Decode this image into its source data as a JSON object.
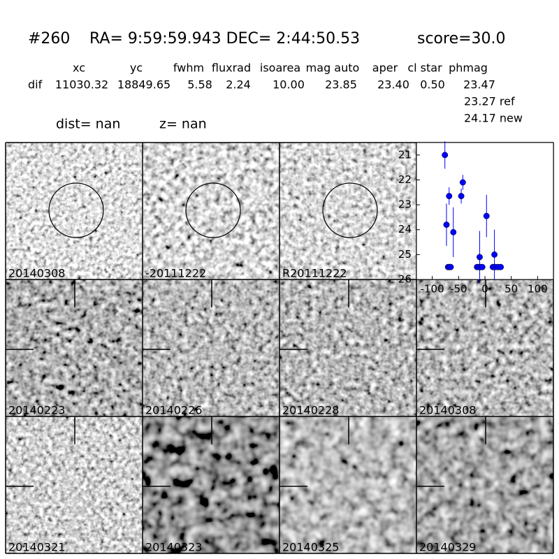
{
  "header": {
    "id": "#260",
    "coords": "RA= 9:59:59.943 DEC= 2:44:50.53",
    "score": "score=30.0",
    "columns": [
      "xc",
      "yc",
      "fwhm",
      "fluxrad",
      "isoarea",
      "mag auto",
      "aper",
      "cl star",
      "phmag"
    ],
    "row_label": "dif",
    "values": [
      "11030.32",
      "18849.65",
      "5.58",
      "2.24",
      "10.00",
      "23.85",
      "23.40",
      "0.50",
      "23.47"
    ],
    "extra": [
      "23.27 ref",
      "24.17 new"
    ],
    "dist": "dist=   nan",
    "z": "z=   nan"
  },
  "panels": [
    {
      "label": "20140308"
    },
    {
      "label": "-20111222"
    },
    {
      "label": "R20111222"
    },
    {
      "label": "20140223"
    },
    {
      "label": "20140226"
    },
    {
      "label": "20140228"
    },
    {
      "label": "20140308",
      "color": "#ff0000"
    },
    {
      "label": "20140321"
    },
    {
      "label": "20140323"
    },
    {
      "label": "20140325"
    },
    {
      "label": "20140329"
    }
  ],
  "chart_data": {
    "type": "scatter",
    "color": "#0000ff",
    "x": [
      -76,
      -73,
      -70,
      -68,
      -67,
      -65,
      -60,
      -45,
      -42,
      -15,
      -12,
      -10,
      -8,
      -5,
      3,
      15,
      18,
      20,
      25,
      30
    ],
    "y": [
      21.0,
      23.8,
      25.5,
      22.65,
      25.5,
      25.5,
      24.1,
      22.65,
      22.1,
      25.5,
      25.5,
      25.1,
      25.5,
      25.5,
      23.45,
      25.5,
      25.0,
      25.5,
      25.5,
      25.5
    ],
    "errors": [
      0.55,
      0.85,
      0,
      0.35,
      0,
      0,
      1.0,
      0.3,
      0.3,
      0,
      0,
      1.05,
      0,
      0,
      0.85,
      0,
      1.0,
      0,
      0,
      0
    ],
    "xlim": [
      -130,
      130
    ],
    "ylim": [
      26,
      20.5
    ],
    "xticks": [
      -100,
      -50,
      0,
      50,
      100
    ],
    "yticks": [
      21,
      22,
      23,
      24,
      25,
      26
    ]
  }
}
